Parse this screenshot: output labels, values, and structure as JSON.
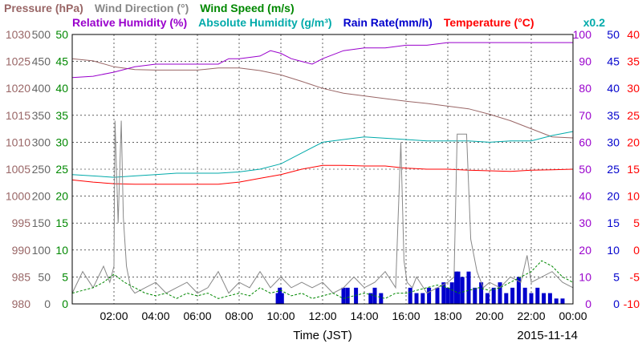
{
  "chart_data": {
    "type": "line",
    "xlabel": "Time (JST)",
    "date": "2015-11-14",
    "x_ticks": [
      "02:00",
      "04:00",
      "06:00",
      "08:00",
      "10:00",
      "12:00",
      "14:00",
      "16:00",
      "18:00",
      "20:00",
      "22:00",
      "00:00"
    ],
    "x_range_hours": [
      0,
      24
    ],
    "grid": true,
    "legend_row1": [
      {
        "name": "Pressure (hPa)",
        "color": "#996666"
      },
      {
        "name": "Wind Direction (°)",
        "color": "#888888"
      },
      {
        "name": "Wind Speed (m/s)",
        "color": "#008800"
      }
    ],
    "legend_row2": [
      {
        "name": "Relative Humidity (%)",
        "color": "#9900cc"
      },
      {
        "name": "Absolute Humidity (g/m³)",
        "color": "#00aaaa"
      },
      {
        "name": "Rain Rate(mm/h)",
        "color": "#0000cc"
      },
      {
        "name": "Temperature (°C)",
        "color": "#ff0000"
      }
    ],
    "multiplier_label": "x0.2",
    "axes": {
      "pressure": {
        "color": "#996666",
        "range": [
          980,
          1030
        ],
        "ticks": [
          "1030",
          "1025",
          "1020",
          "1015",
          "1010",
          "1005",
          "1000",
          "995",
          "990",
          "985",
          "980"
        ]
      },
      "wind_direction": {
        "color": "#666666",
        "range": [
          0,
          500
        ],
        "ticks": [
          "500",
          "450",
          "400",
          "350",
          "300",
          "250",
          "200",
          "150",
          "100",
          "50",
          "0"
        ]
      },
      "wind_speed": {
        "color": "#008800",
        "range": [
          0,
          50
        ],
        "ticks": [
          "50",
          "45",
          "40",
          "35",
          "30",
          "25",
          "20",
          "15",
          "10",
          "5",
          "0"
        ]
      },
      "humidity": {
        "color": "#9900cc",
        "range": [
          0,
          100
        ],
        "ticks": [
          "100",
          "90",
          "80",
          "70",
          "60",
          "50",
          "40",
          "30",
          "20",
          "10",
          "0"
        ]
      },
      "rain_rate": {
        "color": "#0000cc",
        "range": [
          0,
          50
        ],
        "ticks": [
          "50",
          "45",
          "40",
          "35",
          "30",
          "25",
          "20",
          "15",
          "10",
          "5",
          "0"
        ]
      },
      "temperature": {
        "color": "#ff0000",
        "range": [
          -10,
          40
        ],
        "ticks": [
          "40",
          "35",
          "30",
          "25",
          "20",
          "15",
          "10",
          "5",
          "0",
          "-5",
          "-10"
        ]
      }
    },
    "series": [
      {
        "name": "Pressure (hPa)",
        "axis": "pressure",
        "color": "#996666",
        "x": [
          0,
          1,
          2,
          3,
          4,
          5,
          6,
          7,
          8,
          9,
          10,
          11,
          12,
          13,
          14,
          15,
          16,
          17,
          18,
          19,
          20,
          21,
          22,
          23,
          24
        ],
        "y": [
          1025.5,
          1025.1,
          1024,
          1023.5,
          1023.4,
          1023.4,
          1023.4,
          1023.8,
          1023.8,
          1023.3,
          1022.5,
          1021.3,
          1020,
          1019.1,
          1018.6,
          1018.1,
          1017.6,
          1017.2,
          1016.7,
          1016.2,
          1015.2,
          1014,
          1012.5,
          1011,
          1010.8
        ]
      },
      {
        "name": "Relative Humidity (%)",
        "axis": "humidity",
        "color": "#9900cc",
        "x": [
          0,
          1,
          2,
          3,
          4,
          5,
          6,
          7,
          7.5,
          8,
          9,
          9.5,
          10,
          10.5,
          11,
          11.5,
          12,
          13,
          14,
          15,
          16,
          17,
          18,
          19,
          20,
          21,
          22,
          23,
          24
        ],
        "y": [
          84,
          84.5,
          86,
          88,
          89,
          89,
          89,
          89,
          91,
          91,
          92,
          94,
          93,
          91,
          90,
          89,
          91,
          94,
          95,
          95,
          96,
          96,
          97,
          97,
          97,
          97,
          97,
          97,
          97
        ]
      },
      {
        "name": "Absolute Humidity (g/m³)",
        "axis": "humidity",
        "color": "#00aaaa",
        "x": [
          0,
          1,
          2,
          3,
          4,
          5,
          6,
          7,
          8,
          9,
          10,
          11,
          12,
          13,
          14,
          15,
          16,
          17,
          18,
          19,
          20,
          21,
          22,
          23,
          24
        ],
        "y": [
          48,
          47.5,
          47,
          47.5,
          48,
          48.5,
          48.5,
          48.5,
          49,
          50,
          52,
          56,
          60,
          61,
          62,
          61.5,
          61,
          60.5,
          60.5,
          60.5,
          60,
          60.5,
          60.5,
          62.5,
          64
        ]
      },
      {
        "name": "Temperature (°C)",
        "axis": "temperature",
        "color": "#ff0000",
        "x": [
          0,
          1,
          2,
          3,
          4,
          5,
          6,
          7,
          8,
          9,
          10,
          11,
          12,
          13,
          14,
          15,
          16,
          17,
          18,
          19,
          20,
          21,
          22,
          23,
          24
        ],
        "y": [
          13,
          12.6,
          12.3,
          12.2,
          12.2,
          12.2,
          12.2,
          12.2,
          12.6,
          13.3,
          14,
          15,
          15.7,
          15.7,
          15.6,
          15.6,
          15.2,
          15,
          15,
          14.8,
          14.7,
          14.6,
          14.8,
          14.9,
          15
        ]
      },
      {
        "name": "Wind Direction (°)",
        "axis": "wind_direction",
        "color": "#888888",
        "x": [
          0,
          0.5,
          1,
          1.5,
          1.8,
          2.0,
          2.05,
          2.2,
          2.35,
          2.45,
          2.6,
          2.8,
          3.0,
          3.5,
          4,
          4.5,
          5,
          5.5,
          6,
          6.5,
          7,
          7.5,
          8,
          8.5,
          9,
          9.5,
          10,
          10.5,
          11,
          11.5,
          12,
          12.5,
          13,
          13.5,
          14,
          14.5,
          15,
          15.5,
          15.75,
          15.9,
          16.05,
          16.3,
          16.5,
          17,
          17.5,
          18,
          18.3,
          18.45,
          18.6,
          18.9,
          19.1,
          19.4,
          19.7,
          20,
          20.5,
          21,
          21.5,
          21.8,
          22,
          22.5,
          23,
          23.5,
          24
        ],
        "y": [
          20,
          60,
          30,
          70,
          40,
          70,
          340,
          150,
          340,
          160,
          70,
          30,
          20,
          30,
          40,
          20,
          30,
          40,
          20,
          30,
          60,
          20,
          40,
          30,
          60,
          30,
          50,
          30,
          40,
          30,
          40,
          20,
          30,
          50,
          30,
          40,
          60,
          30,
          300,
          80,
          40,
          30,
          50,
          20,
          30,
          40,
          50,
          315,
          315,
          315,
          120,
          60,
          30,
          40,
          30,
          50,
          40,
          90,
          40,
          50,
          60,
          40,
          30
        ]
      },
      {
        "name": "Wind Speed (m/s)",
        "axis": "wind_speed",
        "color": "#008800",
        "x": [
          0,
          0.5,
          1,
          1.5,
          2,
          2.5,
          3,
          3.5,
          4,
          4.5,
          5,
          5.5,
          6,
          6.5,
          7,
          7.5,
          8,
          8.5,
          9,
          9.5,
          10,
          10.5,
          11,
          11.5,
          12,
          12.5,
          13,
          13.5,
          14,
          14.5,
          15,
          15.5,
          16,
          16.5,
          17,
          17.5,
          18,
          18.5,
          19,
          19.5,
          20,
          20.5,
          21,
          21.5,
          22,
          22.5,
          23,
          23.5,
          24
        ],
        "y": [
          2,
          2.5,
          3,
          4,
          5.5,
          4,
          3,
          2,
          1.5,
          2,
          1,
          2,
          1.5,
          2,
          1,
          1.5,
          2,
          1.5,
          3,
          2,
          2.5,
          1.5,
          2,
          1,
          1.5,
          2,
          1,
          1.5,
          2,
          1.5,
          1,
          2,
          2,
          2.5,
          3,
          3.5,
          3,
          2,
          2.5,
          3,
          2.5,
          3,
          4,
          5,
          6,
          8,
          7,
          5,
          4
        ]
      },
      {
        "name": "Rain Rate(mm/h)",
        "axis": "rain_rate",
        "color": "#0000cc",
        "x": [
          9.85,
          9.95,
          10.05,
          13.0,
          13.2,
          13.6,
          14.3,
          14.5,
          14.8,
          16.2,
          16.5,
          16.8,
          17.1,
          17.5,
          17.8,
          18.0,
          18.2,
          18.4,
          18.5,
          18.7,
          19.0,
          19.3,
          19.6,
          19.9,
          20.2,
          20.5,
          20.8,
          21.1,
          21.4,
          21.7,
          22.0,
          22.3,
          22.6,
          22.9,
          23.2,
          23.5
        ],
        "y": [
          2,
          3,
          2,
          3,
          3,
          3,
          2,
          3,
          2,
          3,
          2,
          2,
          3,
          3,
          4,
          3,
          4,
          6,
          6,
          5,
          6,
          3,
          4,
          2,
          3,
          4,
          2,
          3,
          5,
          3,
          2,
          3,
          2,
          2,
          1,
          1
        ]
      }
    ]
  }
}
